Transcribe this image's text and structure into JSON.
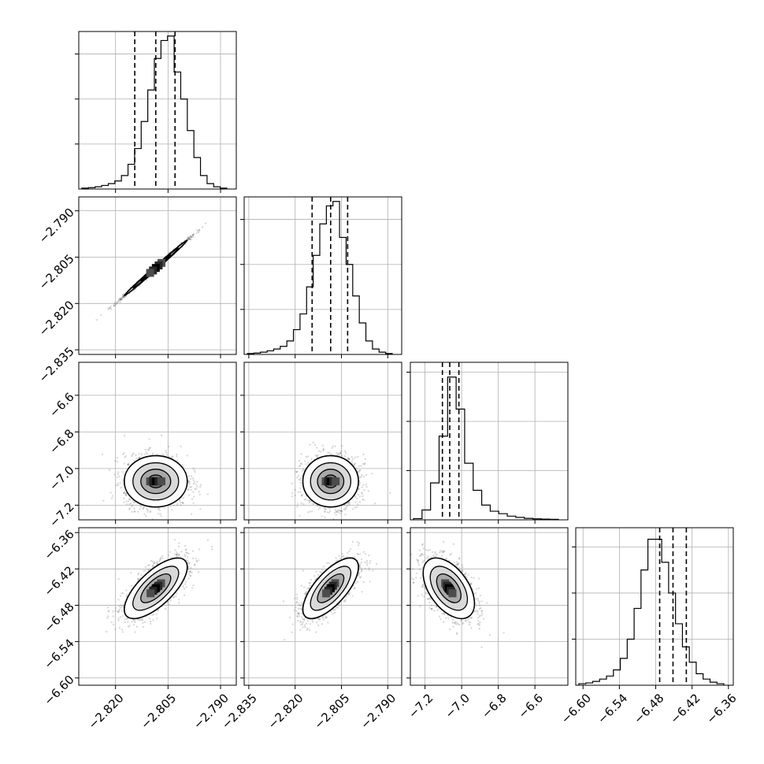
{
  "chart_data": {
    "type": "corner",
    "grid": true,
    "parameters": [
      {
        "key": "p0",
        "lim": [
          -2.8305,
          -2.7855
        ],
        "ticks": [
          -2.82,
          -2.805,
          -2.79
        ],
        "tick_labels": [
          "−2.820",
          "−2.805",
          "−2.790"
        ]
      },
      {
        "key": "p1",
        "lim": [
          -2.8365,
          -2.7855
        ],
        "ticks": [
          -2.835,
          -2.82,
          -2.805,
          -2.79
        ],
        "tick_labels": [
          "−2.835",
          "−2.820",
          "−2.805",
          "−2.790"
        ]
      },
      {
        "key": "p2",
        "lim": [
          -7.28,
          -6.42
        ],
        "ticks": [
          -7.2,
          -7.0,
          -6.8,
          -6.6
        ],
        "tick_labels": [
          "−7.2",
          "−7.0",
          "−6.8",
          "−6.6"
        ]
      },
      {
        "key": "p3",
        "lim": [
          -6.612,
          -6.352
        ],
        "ticks": [
          -6.6,
          -6.54,
          -6.48,
          -6.42,
          -6.36
        ],
        "tick_labels": [
          "−6.60",
          "−6.54",
          "−6.48",
          "−6.42",
          "−6.36"
        ]
      }
    ],
    "histograms": [
      {
        "param": 0,
        "counts": [
          2,
          3,
          5,
          8,
          12,
          18,
          30,
          55,
          90,
          150,
          220,
          290,
          330,
          340,
          260,
          200,
          130,
          70,
          30,
          12,
          5,
          2
        ],
        "quantiles": [
          -2.8145,
          -2.8085,
          -2.803
        ],
        "hist_max": 350,
        "y_ticks": [
          100,
          200,
          300
        ]
      },
      {
        "param": 1,
        "counts": [
          2,
          3,
          5,
          8,
          12,
          18,
          30,
          55,
          90,
          150,
          220,
          290,
          330,
          340,
          260,
          200,
          130,
          70,
          30,
          12,
          5,
          2
        ],
        "quantiles": [
          -2.8145,
          -2.8085,
          -2.803
        ],
        "hist_max": 350,
        "y_ticks": [
          100,
          200,
          300
        ]
      },
      {
        "param": 2,
        "counts": [
          5,
          40,
          150,
          340,
          580,
          450,
          230,
          120,
          60,
          35,
          25,
          15,
          10,
          6,
          4,
          3,
          2
        ],
        "quantiles": [
          -7.105,
          -7.065,
          -7.015
        ],
        "hist_max": 640,
        "y_ticks": [
          200,
          400,
          600
        ]
      },
      {
        "param": 3,
        "counts": [
          2,
          3,
          5,
          8,
          12,
          20,
          35,
          60,
          100,
          150,
          190,
          190,
          160,
          120,
          80,
          50,
          30,
          15,
          8,
          4,
          2
        ],
        "quantiles": [
          -6.4735,
          -6.4515,
          -6.4295
        ],
        "hist_max": 205,
        "y_ticks": [
          60,
          120,
          180
        ]
      }
    ],
    "scatter_panels": [
      {
        "row": 1,
        "col": 0,
        "corr": 0.997
      },
      {
        "row": 2,
        "col": 0,
        "corr": 0.0
      },
      {
        "row": 2,
        "col": 1,
        "corr": 0.0
      },
      {
        "row": 3,
        "col": 0,
        "corr": 0.7
      },
      {
        "row": 3,
        "col": 1,
        "corr": 0.7
      },
      {
        "row": 3,
        "col": 2,
        "corr": -0.5
      }
    ],
    "posterior": {
      "means": [
        -2.8085,
        -2.8085,
        -7.07,
        -6.452
      ],
      "stds": [
        0.0045,
        0.0045,
        0.07,
        0.025
      ]
    }
  }
}
